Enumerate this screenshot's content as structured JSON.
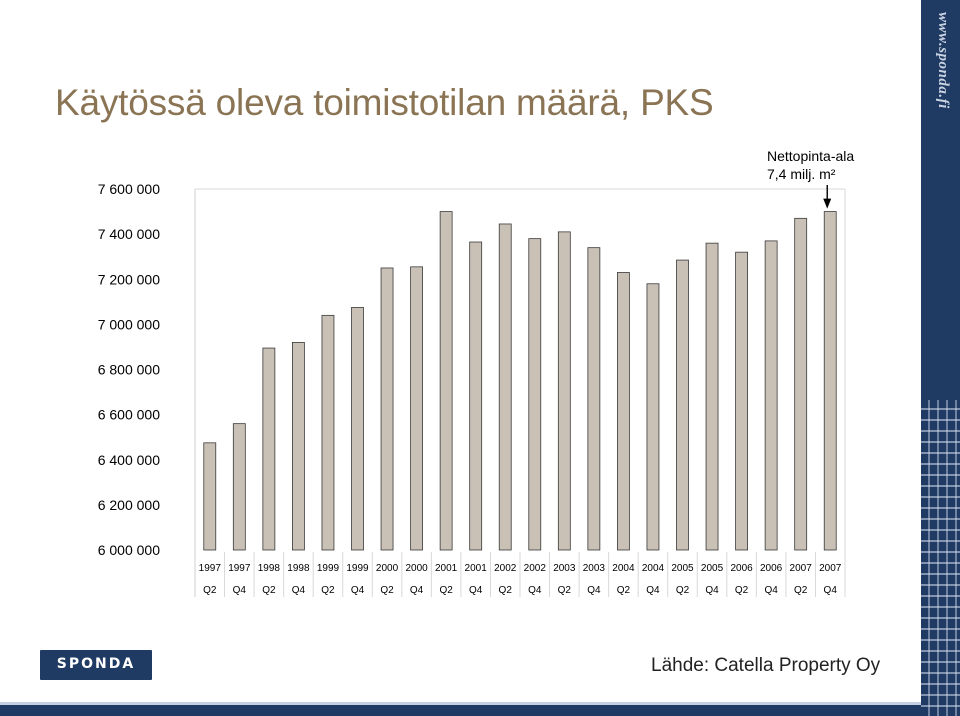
{
  "title": "Käytössä oleva toimistotilan määrä, PKS",
  "annotation": {
    "line1": "Nettopinta-ala",
    "line2": "7,4 milj. m²"
  },
  "source": "Lähde: Catella Property Oy",
  "logo_text": "SPONDA",
  "side_url": "www.sponda.fi",
  "colors": {
    "bar_fill": "#c9c0b6",
    "bar_stroke": "#3a3a3a",
    "title": "#8a7454",
    "brand_blue": "#1f3a63"
  },
  "chart_data": {
    "type": "bar",
    "title": "Käytössä oleva toimistotilan määrä, PKS",
    "ylim": [
      6000000,
      7600000
    ],
    "ytick_values": [
      6000000,
      6200000,
      6400000,
      6600000,
      6800000,
      7000000,
      7200000,
      7400000,
      7600000
    ],
    "ytick_labels": [
      "6 000 000",
      "6 200 000",
      "6 400 000",
      "6 600 000",
      "6 800 000",
      "7 000 000",
      "7 200 000",
      "7 400 000",
      "7 600 000"
    ],
    "categories": [
      {
        "year": "1997",
        "quarter": "Q2"
      },
      {
        "year": "1997",
        "quarter": "Q4"
      },
      {
        "year": "1998",
        "quarter": "Q2"
      },
      {
        "year": "1998",
        "quarter": "Q4"
      },
      {
        "year": "1999",
        "quarter": "Q2"
      },
      {
        "year": "1999",
        "quarter": "Q4"
      },
      {
        "year": "2000",
        "quarter": "Q2"
      },
      {
        "year": "2000",
        "quarter": "Q4"
      },
      {
        "year": "2001",
        "quarter": "Q2"
      },
      {
        "year": "2001",
        "quarter": "Q4"
      },
      {
        "year": "2002",
        "quarter": "Q2"
      },
      {
        "year": "2002",
        "quarter": "Q4"
      },
      {
        "year": "2003",
        "quarter": "Q2"
      },
      {
        "year": "2003",
        "quarter": "Q4"
      },
      {
        "year": "2004",
        "quarter": "Q2"
      },
      {
        "year": "2004",
        "quarter": "Q4"
      },
      {
        "year": "2005",
        "quarter": "Q2"
      },
      {
        "year": "2005",
        "quarter": "Q4"
      },
      {
        "year": "2006",
        "quarter": "Q2"
      },
      {
        "year": "2006",
        "quarter": "Q4"
      },
      {
        "year": "2007",
        "quarter": "Q2"
      },
      {
        "year": "2007",
        "quarter": "Q4"
      }
    ],
    "values": [
      6475000,
      6560000,
      6895000,
      6920000,
      7040000,
      7075000,
      7250000,
      7255000,
      7500000,
      7365000,
      7445000,
      7380000,
      7410000,
      7340000,
      7230000,
      7180000,
      7285000,
      7360000,
      7320000,
      7370000,
      7470000,
      7500000
    ],
    "grid": false,
    "legend": "none"
  }
}
